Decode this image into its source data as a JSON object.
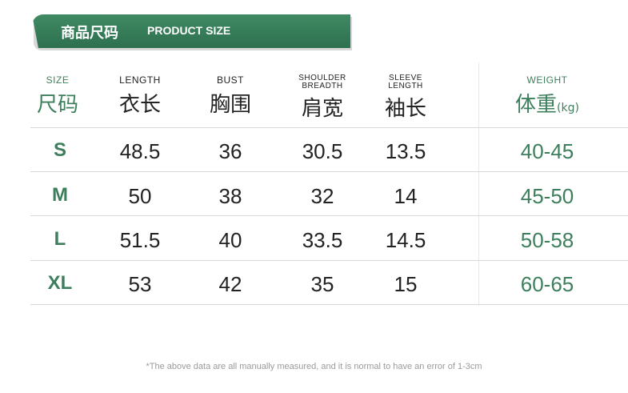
{
  "banner": {
    "title_cn": "商品尺码",
    "title_en": "PRODUCT SIZE"
  },
  "columns": [
    {
      "en": "SIZE",
      "cn": "尺码",
      "unit": ""
    },
    {
      "en": "LENGTH",
      "cn": "衣长",
      "unit": ""
    },
    {
      "en": "BUST",
      "cn": "胸围",
      "unit": ""
    },
    {
      "en_line1": "SHOULDER",
      "en_line2": "BREADTH",
      "cn": "肩宽",
      "unit": ""
    },
    {
      "en_line1": "SLEEVE",
      "en_line2": "LENGTH",
      "cn": "袖长",
      "unit": ""
    },
    {
      "en": "WEIGHT",
      "cn": "体重",
      "unit": "(kg)"
    }
  ],
  "rows": [
    {
      "size": "S",
      "length": "48.5",
      "bust": "36",
      "shoulder": "30.5",
      "sleeve": "13.5",
      "weight": "40-45"
    },
    {
      "size": "M",
      "length": "50",
      "bust": "38",
      "shoulder": "32",
      "sleeve": "14",
      "weight": "45-50"
    },
    {
      "size": "L",
      "length": "51.5",
      "bust": "40",
      "shoulder": "33.5",
      "sleeve": "14.5",
      "weight": "50-58"
    },
    {
      "size": "XL",
      "length": "53",
      "bust": "42",
      "shoulder": "35",
      "sleeve": "15",
      "weight": "60-65"
    }
  ],
  "note": "*The above data are all manually measured, and it is normal to have an error of 1-3cm",
  "colors": {
    "accent": "#3d7f5c",
    "banner": "#2e7050",
    "text": "#222222"
  }
}
